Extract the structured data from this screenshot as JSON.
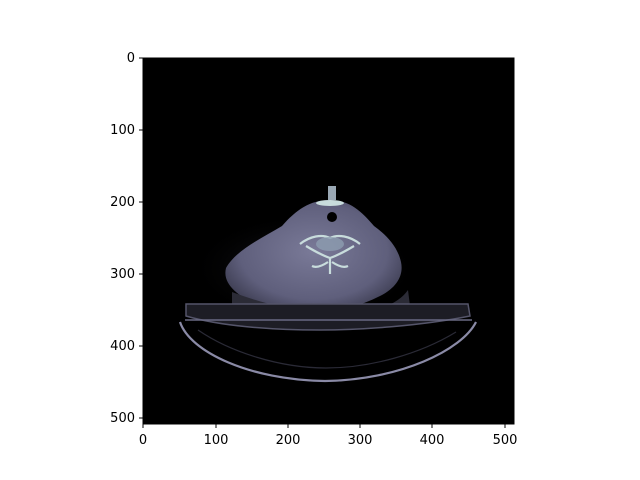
{
  "figure": {
    "image_description": "Axial CT slice of the neck, shown in a bone-style (bluish-gray) colormap on black background, with patient table visible below.",
    "colormap": "bone",
    "background_color": "#000000",
    "tissue_color": "#6e6e8e",
    "bone_color": "#c8dcdc"
  },
  "axes": {
    "x_ticks": [
      "0",
      "100",
      "200",
      "300",
      "400",
      "500"
    ],
    "y_ticks": [
      "0",
      "100",
      "200",
      "300",
      "400",
      "500"
    ],
    "x_range": [
      0,
      512
    ],
    "y_range": [
      0,
      512
    ]
  }
}
